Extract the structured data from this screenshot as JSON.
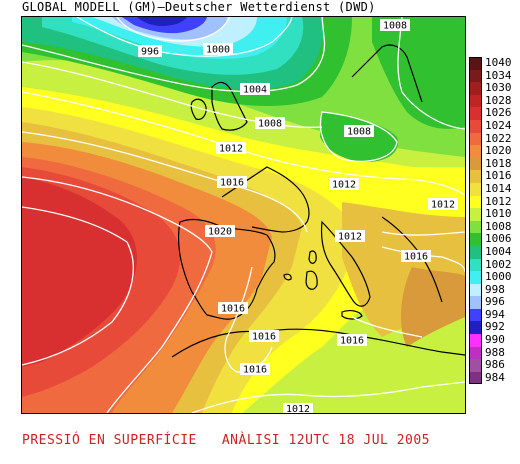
{
  "title": "GLOBAL MODELL (GM)—Deutscher Wetterdienst (DWD)",
  "footer": "PRESSIÓ EN SUPERFÍCIE   ANÀLISI 12UTC 18 JUL 2005",
  "legend": [
    {
      "label": "1040",
      "color": "#5a1414"
    },
    {
      "label": "1034",
      "color": "#7a1a1a"
    },
    {
      "label": "1030",
      "color": "#a01e1e"
    },
    {
      "label": "1028",
      "color": "#c02424"
    },
    {
      "label": "1026",
      "color": "#d83030"
    },
    {
      "label": "1024",
      "color": "#e84a3a"
    },
    {
      "label": "1022",
      "color": "#f06a40"
    },
    {
      "label": "1020",
      "color": "#f08c3c"
    },
    {
      "label": "1018",
      "color": "#d89a3a"
    },
    {
      "label": "1016",
      "color": "#e8c040"
    },
    {
      "label": "1014",
      "color": "#f0e040"
    },
    {
      "label": "1012",
      "color": "#ffff20"
    },
    {
      "label": "1010",
      "color": "#c8f040"
    },
    {
      "label": "1008",
      "color": "#80e040"
    },
    {
      "label": "1006",
      "color": "#30c030"
    },
    {
      "label": "1004",
      "color": "#20c080"
    },
    {
      "label": "1002",
      "color": "#30e0c0"
    },
    {
      "label": "1000",
      "color": "#40f0f0"
    },
    {
      "label": "998",
      "color": "#c0f0ff"
    },
    {
      "label": "996",
      "color": "#a0c0ff"
    },
    {
      "label": "994",
      "color": "#4040ff"
    },
    {
      "label": "992",
      "color": "#2020c0"
    },
    {
      "label": "990",
      "color": "#ff30ff"
    },
    {
      "label": "988",
      "color": "#c030c0"
    },
    {
      "label": "986",
      "color": "#a050a0"
    },
    {
      "label": "984",
      "color": "#803080"
    }
  ],
  "isobar_labels": [
    {
      "id": "996",
      "text": "996"
    },
    {
      "id": "1000",
      "text": "1000"
    },
    {
      "id": "1004",
      "text": "1004"
    },
    {
      "id": "1008a",
      "text": "1008"
    },
    {
      "id": "1008b",
      "text": "1008"
    },
    {
      "id": "1008c",
      "text": "1008"
    },
    {
      "id": "1012a",
      "text": "1012"
    },
    {
      "id": "1012b",
      "text": "1012"
    },
    {
      "id": "1012c",
      "text": "1012"
    },
    {
      "id": "1012d",
      "text": "1012"
    },
    {
      "id": "1012e",
      "text": "1012"
    },
    {
      "id": "1016a",
      "text": "1016"
    },
    {
      "id": "1016b",
      "text": "1016"
    },
    {
      "id": "1016c",
      "text": "1016"
    },
    {
      "id": "1016d",
      "text": "1016"
    },
    {
      "id": "1016e",
      "text": "1016"
    },
    {
      "id": "1016f",
      "text": "1016"
    },
    {
      "id": "1016g",
      "text": "1016"
    },
    {
      "id": "1020",
      "text": "1020"
    }
  ]
}
